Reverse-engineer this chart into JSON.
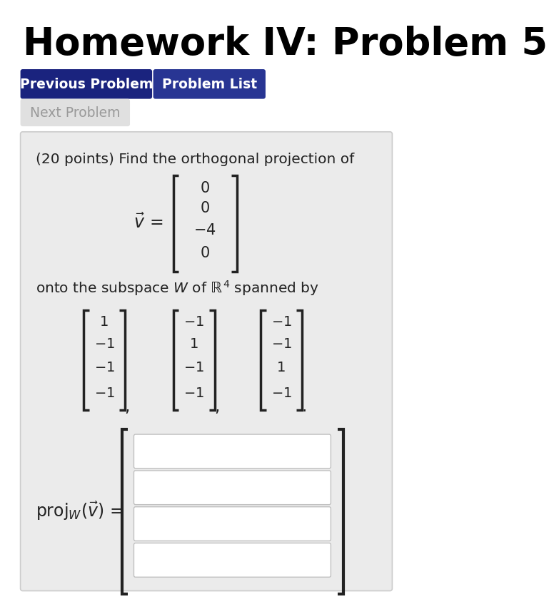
{
  "title": "Homework IV: Problem 5",
  "title_fontsize": 38,
  "title_fontweight": "bold",
  "bg_color": "#ffffff",
  "panel_bg": "#ebebeb",
  "btn1_text": "Previous Problem",
  "btn2_text": "Problem List",
  "btn3_text": "Next Problem",
  "btn1_color": "#1a237e",
  "btn2_color": "#283593",
  "btn3_color": "#e0e0e0",
  "btn_text_color": "#ffffff",
  "btn3_text_color": "#999999",
  "problem_text": "(20 points) Find the orthogonal projection of",
  "panel_border": "#cccccc",
  "text_color": "#222222"
}
